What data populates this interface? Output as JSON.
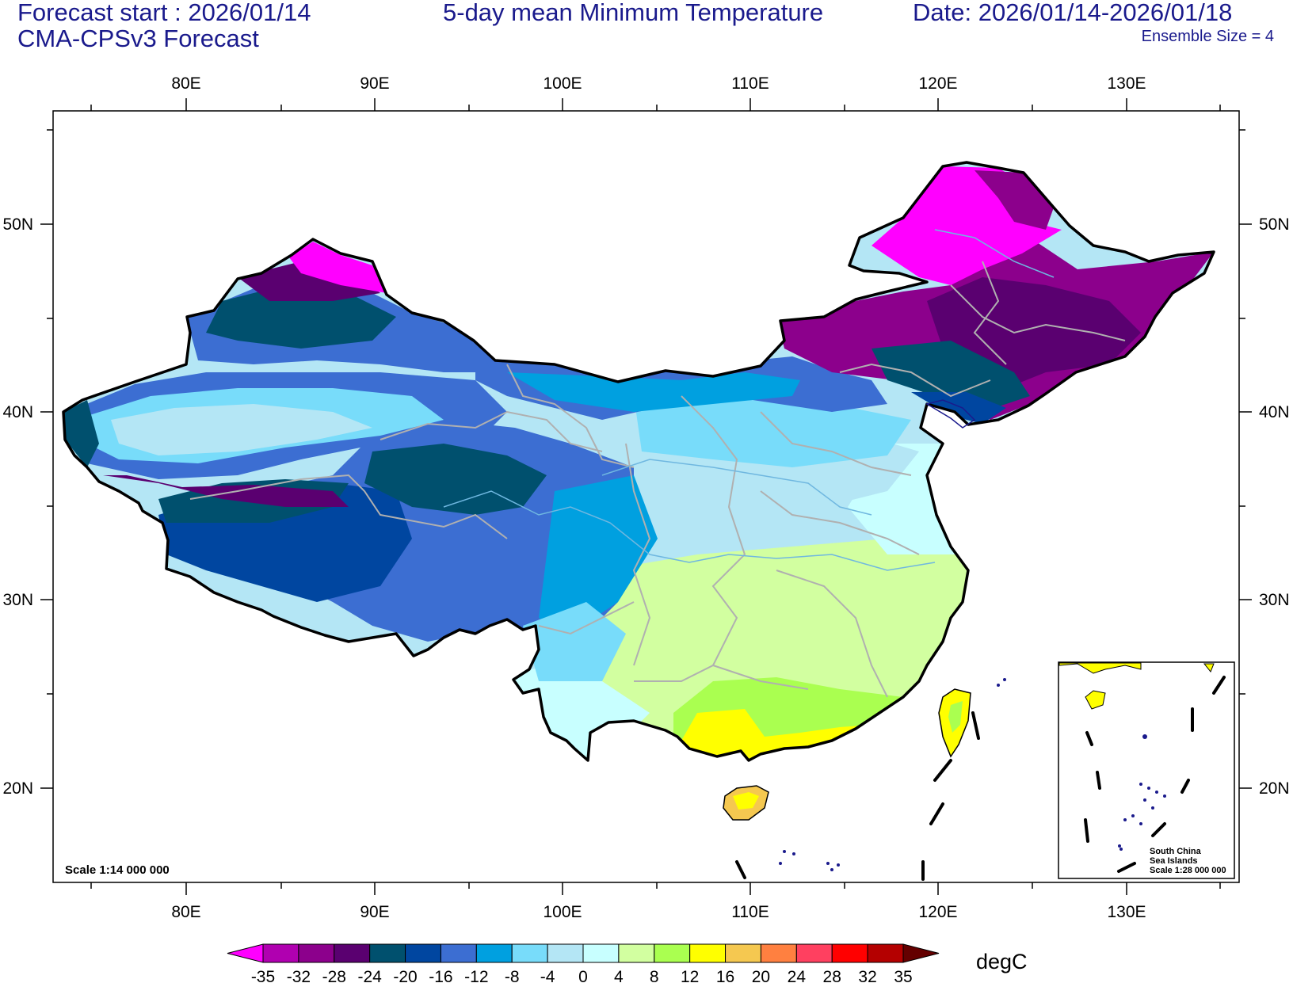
{
  "header": {
    "forecast_start": "Forecast start : 2026/01/14",
    "model": "CMA-CPSv3 Forecast",
    "title": "5-day mean Minimum Temperature",
    "date_range": "Date: 2026/01/14-2026/01/18",
    "ensemble": "Ensemble Size = 4"
  },
  "axes": {
    "lon_labels": [
      "80E",
      "90E",
      "100E",
      "110E",
      "120E",
      "130E"
    ],
    "lat_labels": [
      "50N",
      "40N",
      "30N",
      "20N"
    ]
  },
  "scale_note": "Scale 1:14 000 000",
  "inset": {
    "lines": [
      "South China",
      "Sea Islands",
      "Scale 1:28 000 000"
    ]
  },
  "colorbar": {
    "unit": "degC",
    "labels": [
      "-35",
      "-32",
      "-28",
      "-24",
      "-20",
      "-16",
      "-12",
      "-8",
      "-4",
      "0",
      "4",
      "8",
      "12",
      "16",
      "20",
      "24",
      "28",
      "32",
      "35"
    ],
    "colors": [
      "#ff00ff",
      "#b000b0",
      "#8c008c",
      "#5a0070",
      "#00506e",
      "#0046a0",
      "#3c6ed2",
      "#00a0e0",
      "#78dcfa",
      "#b4e6f5",
      "#c8ffff",
      "#d2ffa0",
      "#aaff50",
      "#ffff00",
      "#f5c850",
      "#ff8040",
      "#ff4060",
      "#ff0000",
      "#b40000",
      "#640000"
    ]
  },
  "regions": [
    {
      "name": "northeast-china",
      "color": "#8c008c"
    },
    {
      "name": "tarim-basin",
      "color": "#78dcfa"
    },
    {
      "name": "tibet-plateau",
      "color": "#0046a0"
    },
    {
      "name": "south-china-coast",
      "color": "#ffff00"
    }
  ]
}
